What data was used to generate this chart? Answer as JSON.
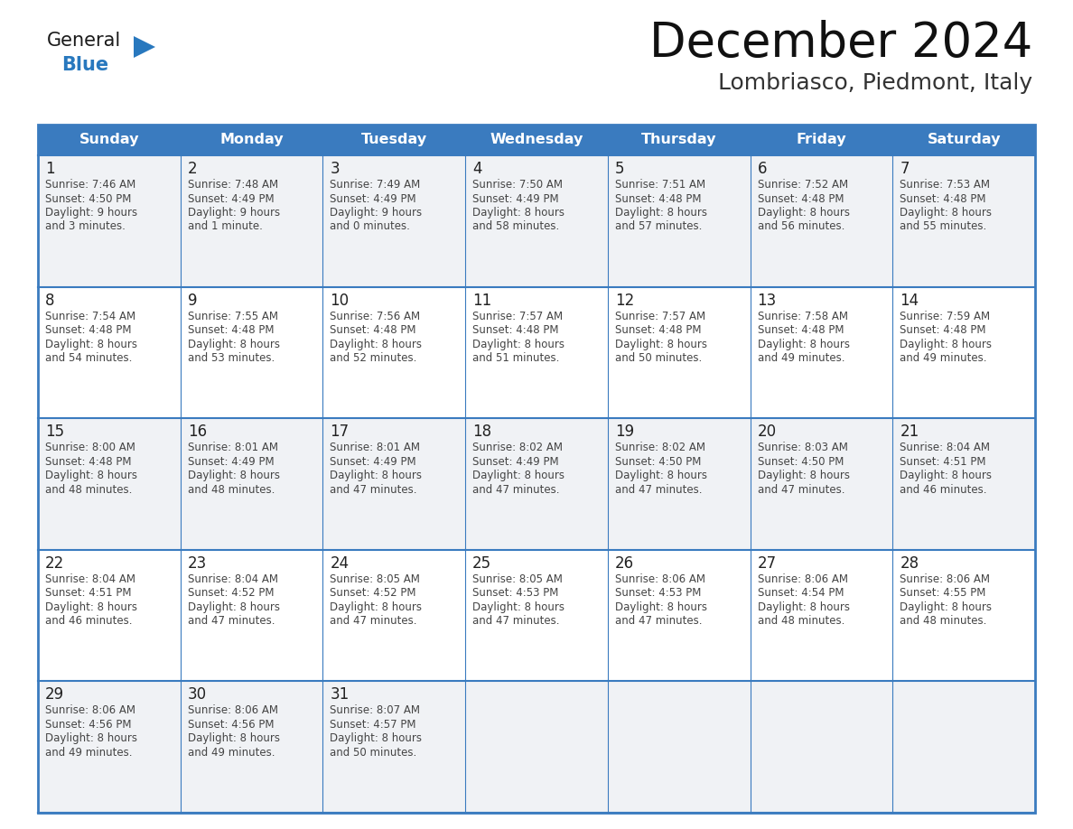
{
  "title": "December 2024",
  "subtitle": "Lombriasco, Piedmont, Italy",
  "days_of_week": [
    "Sunday",
    "Monday",
    "Tuesday",
    "Wednesday",
    "Thursday",
    "Friday",
    "Saturday"
  ],
  "header_bg": "#3a7bbf",
  "header_text": "#ffffff",
  "cell_bg_light": "#f0f2f5",
  "cell_bg_white": "#ffffff",
  "border_color": "#3a7bbf",
  "day_number_color": "#222222",
  "cell_text_color": "#444444",
  "logo_general_color": "#1a1a1a",
  "logo_blue_color": "#2878be",
  "logo_triangle_color": "#2878be",
  "weeks": [
    [
      {
        "day": 1,
        "sunrise": "7:46 AM",
        "sunset": "4:50 PM",
        "daylight_line1": "Daylight: 9 hours",
        "daylight_line2": "and 3 minutes."
      },
      {
        "day": 2,
        "sunrise": "7:48 AM",
        "sunset": "4:49 PM",
        "daylight_line1": "Daylight: 9 hours",
        "daylight_line2": "and 1 minute."
      },
      {
        "day": 3,
        "sunrise": "7:49 AM",
        "sunset": "4:49 PM",
        "daylight_line1": "Daylight: 9 hours",
        "daylight_line2": "and 0 minutes."
      },
      {
        "day": 4,
        "sunrise": "7:50 AM",
        "sunset": "4:49 PM",
        "daylight_line1": "Daylight: 8 hours",
        "daylight_line2": "and 58 minutes."
      },
      {
        "day": 5,
        "sunrise": "7:51 AM",
        "sunset": "4:48 PM",
        "daylight_line1": "Daylight: 8 hours",
        "daylight_line2": "and 57 minutes."
      },
      {
        "day": 6,
        "sunrise": "7:52 AM",
        "sunset": "4:48 PM",
        "daylight_line1": "Daylight: 8 hours",
        "daylight_line2": "and 56 minutes."
      },
      {
        "day": 7,
        "sunrise": "7:53 AM",
        "sunset": "4:48 PM",
        "daylight_line1": "Daylight: 8 hours",
        "daylight_line2": "and 55 minutes."
      }
    ],
    [
      {
        "day": 8,
        "sunrise": "7:54 AM",
        "sunset": "4:48 PM",
        "daylight_line1": "Daylight: 8 hours",
        "daylight_line2": "and 54 minutes."
      },
      {
        "day": 9,
        "sunrise": "7:55 AM",
        "sunset": "4:48 PM",
        "daylight_line1": "Daylight: 8 hours",
        "daylight_line2": "and 53 minutes."
      },
      {
        "day": 10,
        "sunrise": "7:56 AM",
        "sunset": "4:48 PM",
        "daylight_line1": "Daylight: 8 hours",
        "daylight_line2": "and 52 minutes."
      },
      {
        "day": 11,
        "sunrise": "7:57 AM",
        "sunset": "4:48 PM",
        "daylight_line1": "Daylight: 8 hours",
        "daylight_line2": "and 51 minutes."
      },
      {
        "day": 12,
        "sunrise": "7:57 AM",
        "sunset": "4:48 PM",
        "daylight_line1": "Daylight: 8 hours",
        "daylight_line2": "and 50 minutes."
      },
      {
        "day": 13,
        "sunrise": "7:58 AM",
        "sunset": "4:48 PM",
        "daylight_line1": "Daylight: 8 hours",
        "daylight_line2": "and 49 minutes."
      },
      {
        "day": 14,
        "sunrise": "7:59 AM",
        "sunset": "4:48 PM",
        "daylight_line1": "Daylight: 8 hours",
        "daylight_line2": "and 49 minutes."
      }
    ],
    [
      {
        "day": 15,
        "sunrise": "8:00 AM",
        "sunset": "4:48 PM",
        "daylight_line1": "Daylight: 8 hours",
        "daylight_line2": "and 48 minutes."
      },
      {
        "day": 16,
        "sunrise": "8:01 AM",
        "sunset": "4:49 PM",
        "daylight_line1": "Daylight: 8 hours",
        "daylight_line2": "and 48 minutes."
      },
      {
        "day": 17,
        "sunrise": "8:01 AM",
        "sunset": "4:49 PM",
        "daylight_line1": "Daylight: 8 hours",
        "daylight_line2": "and 47 minutes."
      },
      {
        "day": 18,
        "sunrise": "8:02 AM",
        "sunset": "4:49 PM",
        "daylight_line1": "Daylight: 8 hours",
        "daylight_line2": "and 47 minutes."
      },
      {
        "day": 19,
        "sunrise": "8:02 AM",
        "sunset": "4:50 PM",
        "daylight_line1": "Daylight: 8 hours",
        "daylight_line2": "and 47 minutes."
      },
      {
        "day": 20,
        "sunrise": "8:03 AM",
        "sunset": "4:50 PM",
        "daylight_line1": "Daylight: 8 hours",
        "daylight_line2": "and 47 minutes."
      },
      {
        "day": 21,
        "sunrise": "8:04 AM",
        "sunset": "4:51 PM",
        "daylight_line1": "Daylight: 8 hours",
        "daylight_line2": "and 46 minutes."
      }
    ],
    [
      {
        "day": 22,
        "sunrise": "8:04 AM",
        "sunset": "4:51 PM",
        "daylight_line1": "Daylight: 8 hours",
        "daylight_line2": "and 46 minutes."
      },
      {
        "day": 23,
        "sunrise": "8:04 AM",
        "sunset": "4:52 PM",
        "daylight_line1": "Daylight: 8 hours",
        "daylight_line2": "and 47 minutes."
      },
      {
        "day": 24,
        "sunrise": "8:05 AM",
        "sunset": "4:52 PM",
        "daylight_line1": "Daylight: 8 hours",
        "daylight_line2": "and 47 minutes."
      },
      {
        "day": 25,
        "sunrise": "8:05 AM",
        "sunset": "4:53 PM",
        "daylight_line1": "Daylight: 8 hours",
        "daylight_line2": "and 47 minutes."
      },
      {
        "day": 26,
        "sunrise": "8:06 AM",
        "sunset": "4:53 PM",
        "daylight_line1": "Daylight: 8 hours",
        "daylight_line2": "and 47 minutes."
      },
      {
        "day": 27,
        "sunrise": "8:06 AM",
        "sunset": "4:54 PM",
        "daylight_line1": "Daylight: 8 hours",
        "daylight_line2": "and 48 minutes."
      },
      {
        "day": 28,
        "sunrise": "8:06 AM",
        "sunset": "4:55 PM",
        "daylight_line1": "Daylight: 8 hours",
        "daylight_line2": "and 48 minutes."
      }
    ],
    [
      {
        "day": 29,
        "sunrise": "8:06 AM",
        "sunset": "4:56 PM",
        "daylight_line1": "Daylight: 8 hours",
        "daylight_line2": "and 49 minutes."
      },
      {
        "day": 30,
        "sunrise": "8:06 AM",
        "sunset": "4:56 PM",
        "daylight_line1": "Daylight: 8 hours",
        "daylight_line2": "and 49 minutes."
      },
      {
        "day": 31,
        "sunrise": "8:07 AM",
        "sunset": "4:57 PM",
        "daylight_line1": "Daylight: 8 hours",
        "daylight_line2": "and 50 minutes."
      },
      null,
      null,
      null,
      null
    ]
  ]
}
